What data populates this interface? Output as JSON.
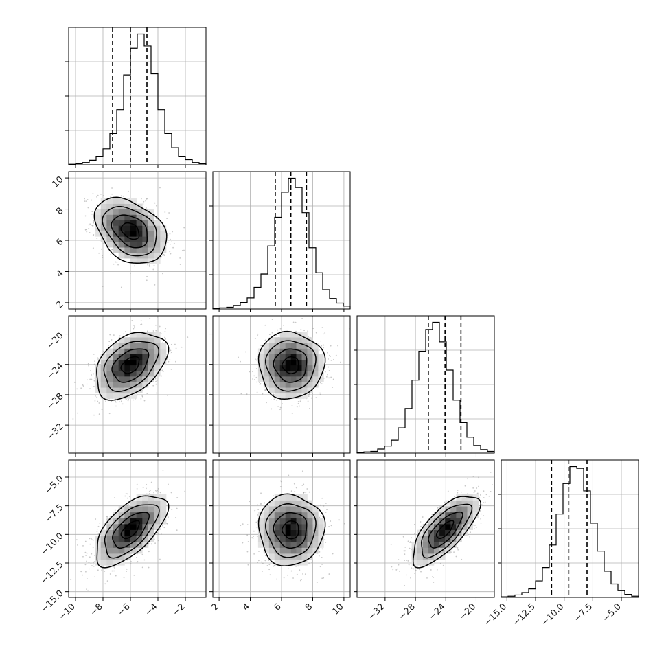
{
  "chart_data": {
    "type": "corner",
    "parameters": [
      {
        "index": 0,
        "range": [
          -10.5,
          -0.5
        ],
        "ticks": [
          -10,
          -8,
          -6,
          -4,
          -2
        ],
        "tick_labels": [
          "−10",
          "−8",
          "−6",
          "−4",
          "−2"
        ],
        "quantiles": [
          -7.3,
          -6.0,
          -4.8
        ]
      },
      {
        "index": 1,
        "range": [
          1.6,
          10.4
        ],
        "ticks": [
          2,
          4,
          6,
          8,
          10
        ],
        "tick_labels": [
          "2",
          "4",
          "6",
          "8",
          "10"
        ],
        "quantiles": [
          5.6,
          6.6,
          7.6
        ]
      },
      {
        "index": 2,
        "range": [
          -35.7,
          -17.6
        ],
        "ticks": [
          -32,
          -28,
          -24,
          -20
        ],
        "tick_labels": [
          "−32",
          "−28",
          "−24",
          "−20"
        ],
        "quantiles": [
          -26.3,
          -24.1,
          -22.0
        ]
      },
      {
        "index": 3,
        "range": [
          -15.5,
          -3.5
        ],
        "ticks": [
          -15.0,
          -12.5,
          -10.0,
          -7.5,
          -5.0
        ],
        "tick_labels": [
          "−15.0",
          "−12.5",
          "−10.0",
          "−7.5",
          "−5.0"
        ],
        "quantiles": [
          -11.1,
          -9.6,
          -8.0
        ]
      }
    ],
    "histograms": [
      {
        "param": 0,
        "bin_start": -10.5,
        "bin_width": 0.5,
        "counts": [
          1,
          2,
          4,
          8,
          15,
          28,
          55,
          97,
          158,
          205,
          230,
          209,
          160,
          97,
          55,
          30,
          15,
          9,
          4,
          2
        ]
      },
      {
        "param": 1,
        "bin_start": 1.6,
        "bin_width": 0.44,
        "counts": [
          1,
          2,
          3,
          6,
          11,
          19,
          37,
          60,
          108,
          157,
          200,
          224,
          208,
          165,
          105,
          62,
          33,
          18,
          10,
          5
        ]
      },
      {
        "param": 2,
        "bin_start": -35.7,
        "bin_width": 0.905,
        "counts": [
          1,
          2,
          3,
          7,
          12,
          22,
          43,
          76,
          124,
          173,
          210,
          222,
          189,
          141,
          90,
          52,
          27,
          13,
          6,
          3
        ]
      },
      {
        "param": 3,
        "bin_start": -15.5,
        "bin_width": 0.6,
        "counts": [
          1,
          2,
          4,
          8,
          14,
          27,
          49,
          86,
          137,
          187,
          215,
          212,
          175,
          122,
          76,
          43,
          22,
          11,
          5,
          2
        ]
      }
    ],
    "pairs": [
      {
        "x_param": 0,
        "y_param": 1,
        "mean": [
          -6.0,
          6.6
        ],
        "sigma": [
          1.3,
          1.05
        ],
        "rho": -0.35
      },
      {
        "x_param": 0,
        "y_param": 2,
        "mean": [
          -6.0,
          -24.1
        ],
        "sigma": [
          1.3,
          2.2
        ],
        "rho": 0.4
      },
      {
        "x_param": 1,
        "y_param": 2,
        "mean": [
          6.6,
          -24.1
        ],
        "sigma": [
          1.05,
          2.2
        ],
        "rho": 0.0
      },
      {
        "x_param": 0,
        "y_param": 3,
        "mean": [
          -6.0,
          -9.6
        ],
        "sigma": [
          1.3,
          1.55
        ],
        "rho": 0.62
      },
      {
        "x_param": 1,
        "y_param": 3,
        "mean": [
          6.6,
          -9.6
        ],
        "sigma": [
          1.05,
          1.55
        ],
        "rho": 0.0
      },
      {
        "x_param": 2,
        "y_param": 3,
        "mean": [
          -24.1,
          -9.6
        ],
        "sigma": [
          2.2,
          1.55
        ],
        "rho": 0.72
      }
    ],
    "contour_levels_sigma": [
      0.5,
      1.0,
      1.5,
      2.0
    ],
    "grid": true,
    "colors": {
      "line": "#000000",
      "points": "#9a9a9a",
      "grid": "#b0b0b0",
      "frame": "#000000"
    }
  }
}
